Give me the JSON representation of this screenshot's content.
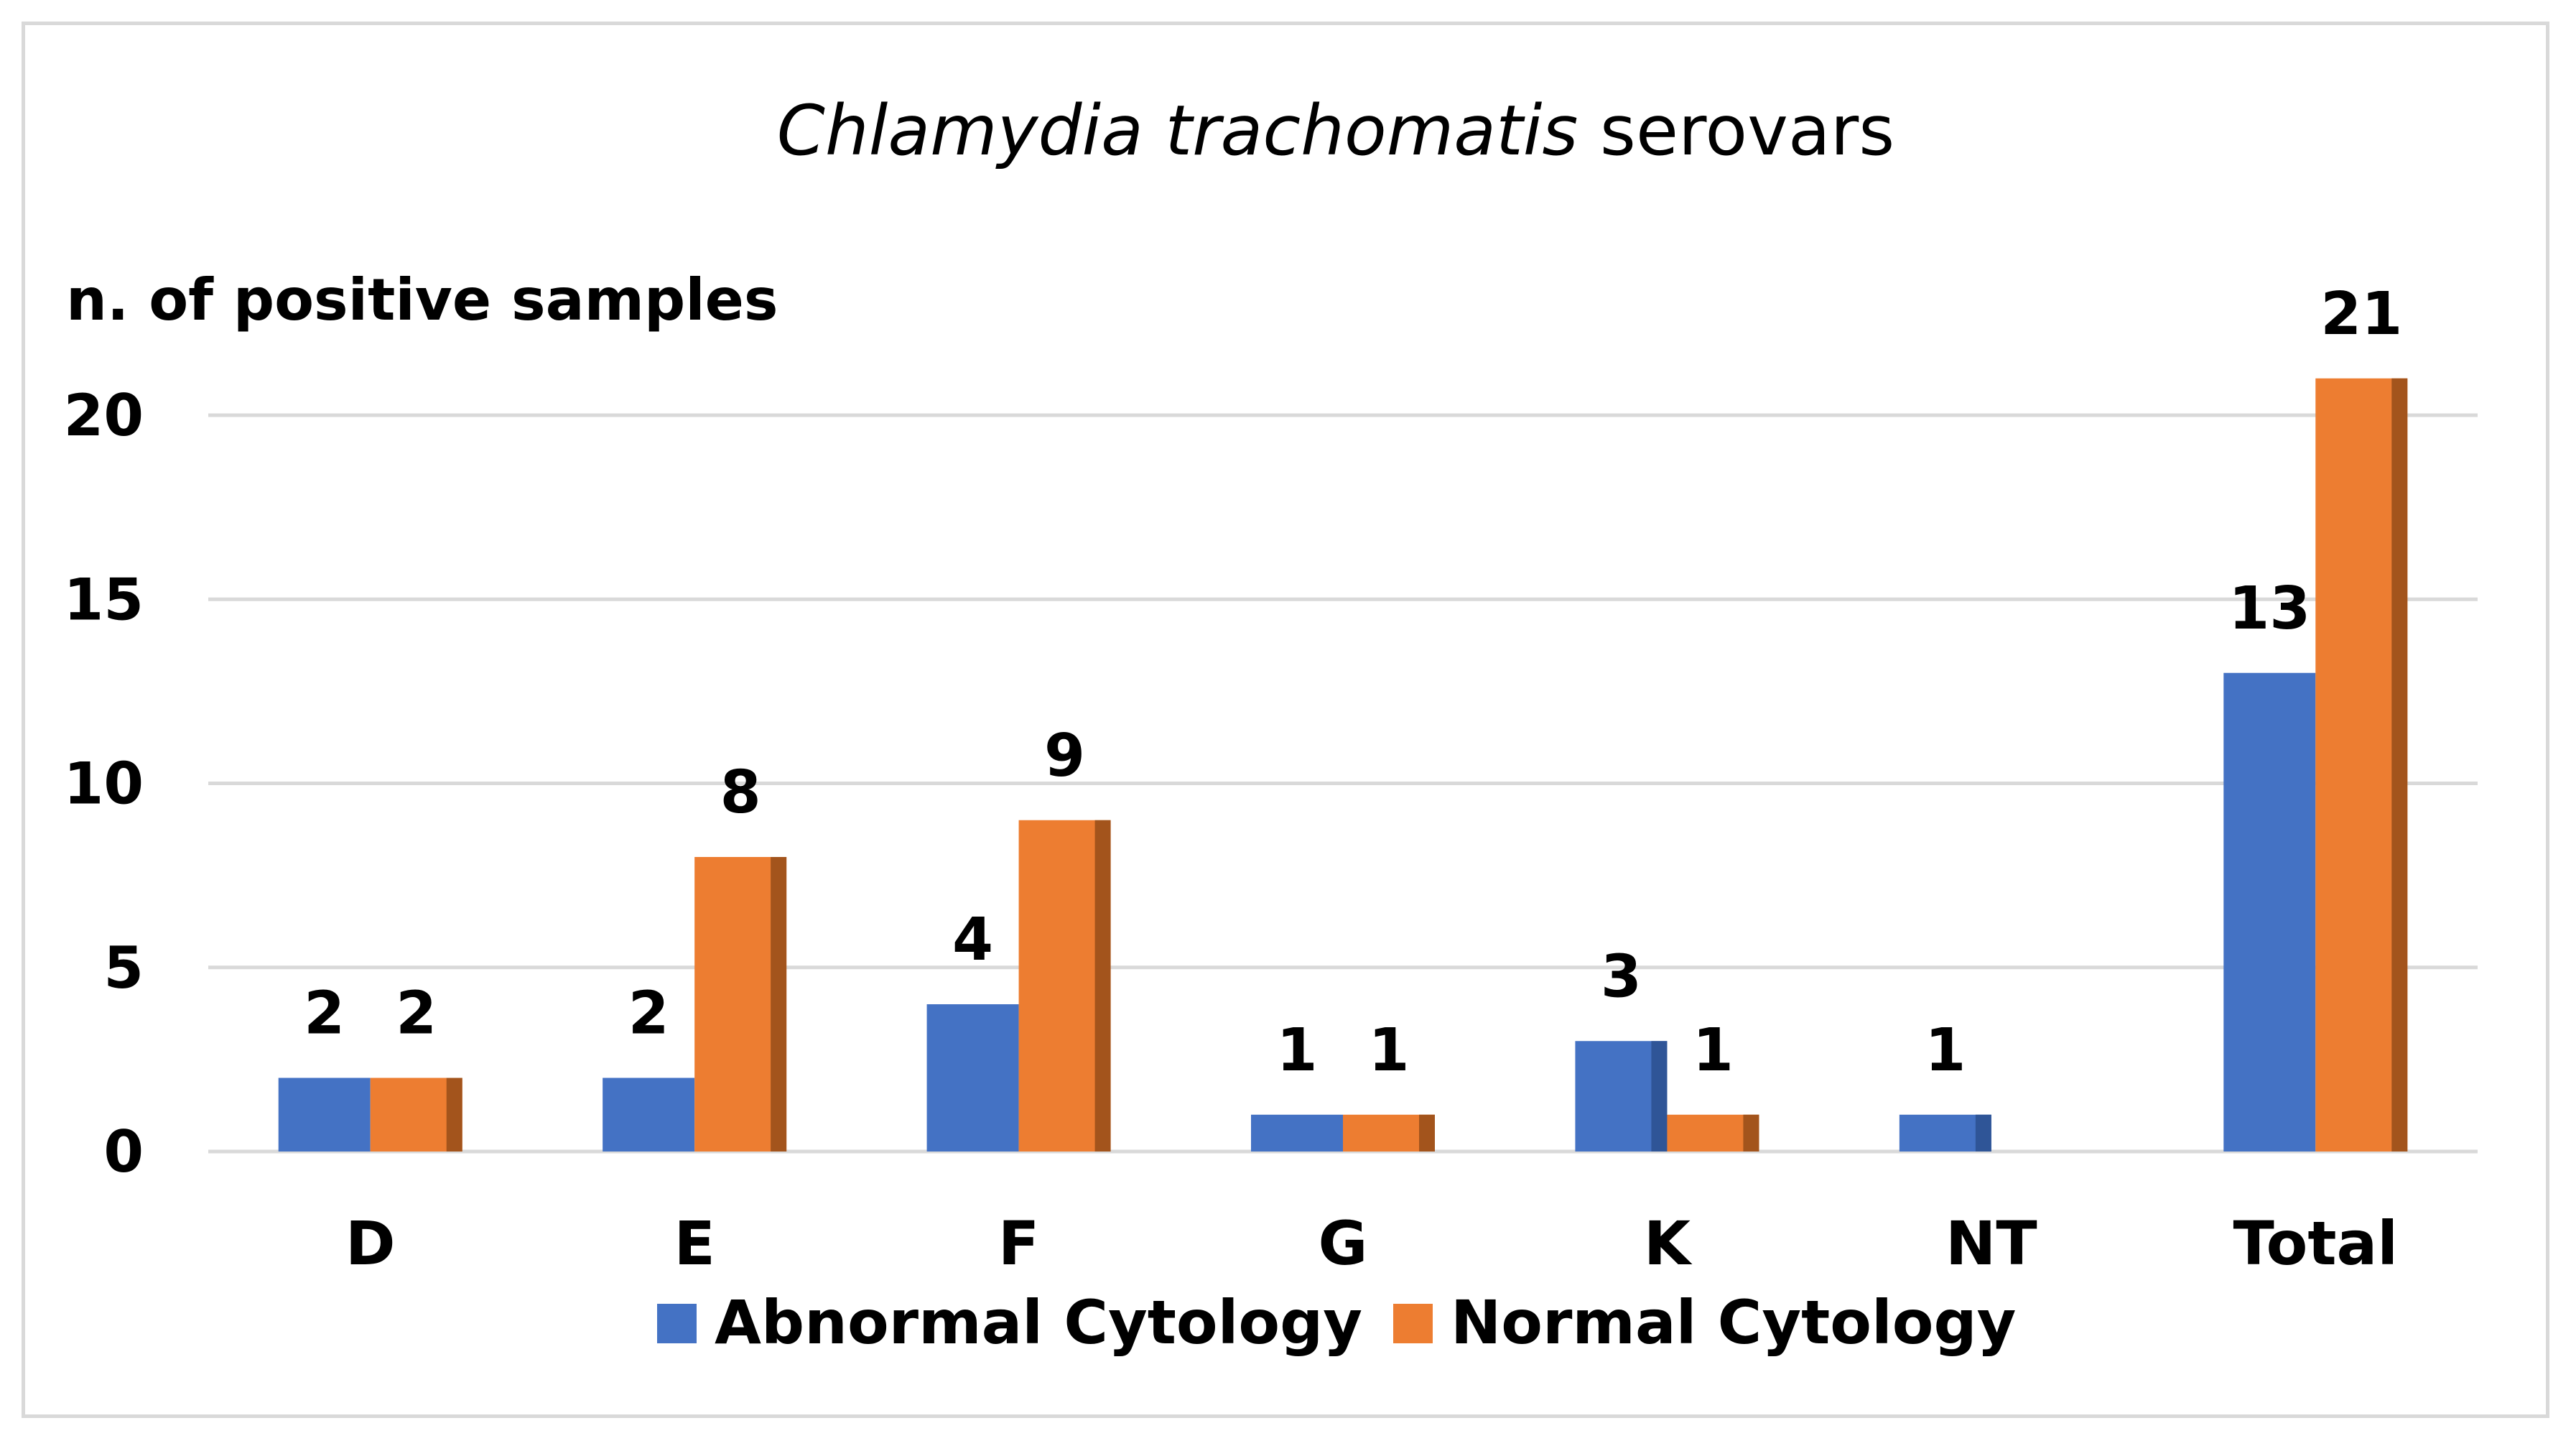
{
  "chart_data": {
    "type": "bar",
    "title_italic": "Chlamydia trachomatis",
    "title_rest": " serovars",
    "ylabel": "n. of positive samples",
    "xlabel": "",
    "categories": [
      "D",
      "E",
      "F",
      "G",
      "K",
      "NT",
      "Total"
    ],
    "series": [
      {
        "name": "Abnormal Cytology",
        "color": "#4472c4",
        "shade": "#2f5597",
        "values": [
          2,
          2,
          4,
          1,
          3,
          1,
          13
        ],
        "labels": [
          "2",
          "2",
          "4",
          "1",
          "3",
          "1",
          "13"
        ]
      },
      {
        "name": "Normal Cytology",
        "color": "#ed7d31",
        "shade": "#a3541c",
        "values": [
          2,
          8,
          9,
          1,
          1,
          null,
          21
        ],
        "labels": [
          "2",
          "8",
          "9",
          "1",
          "1",
          "",
          "21"
        ]
      }
    ],
    "ylim": [
      0,
      20
    ],
    "yticks": [
      0,
      5,
      10,
      15,
      20
    ],
    "grid": true,
    "legend_position": "bottom"
  }
}
